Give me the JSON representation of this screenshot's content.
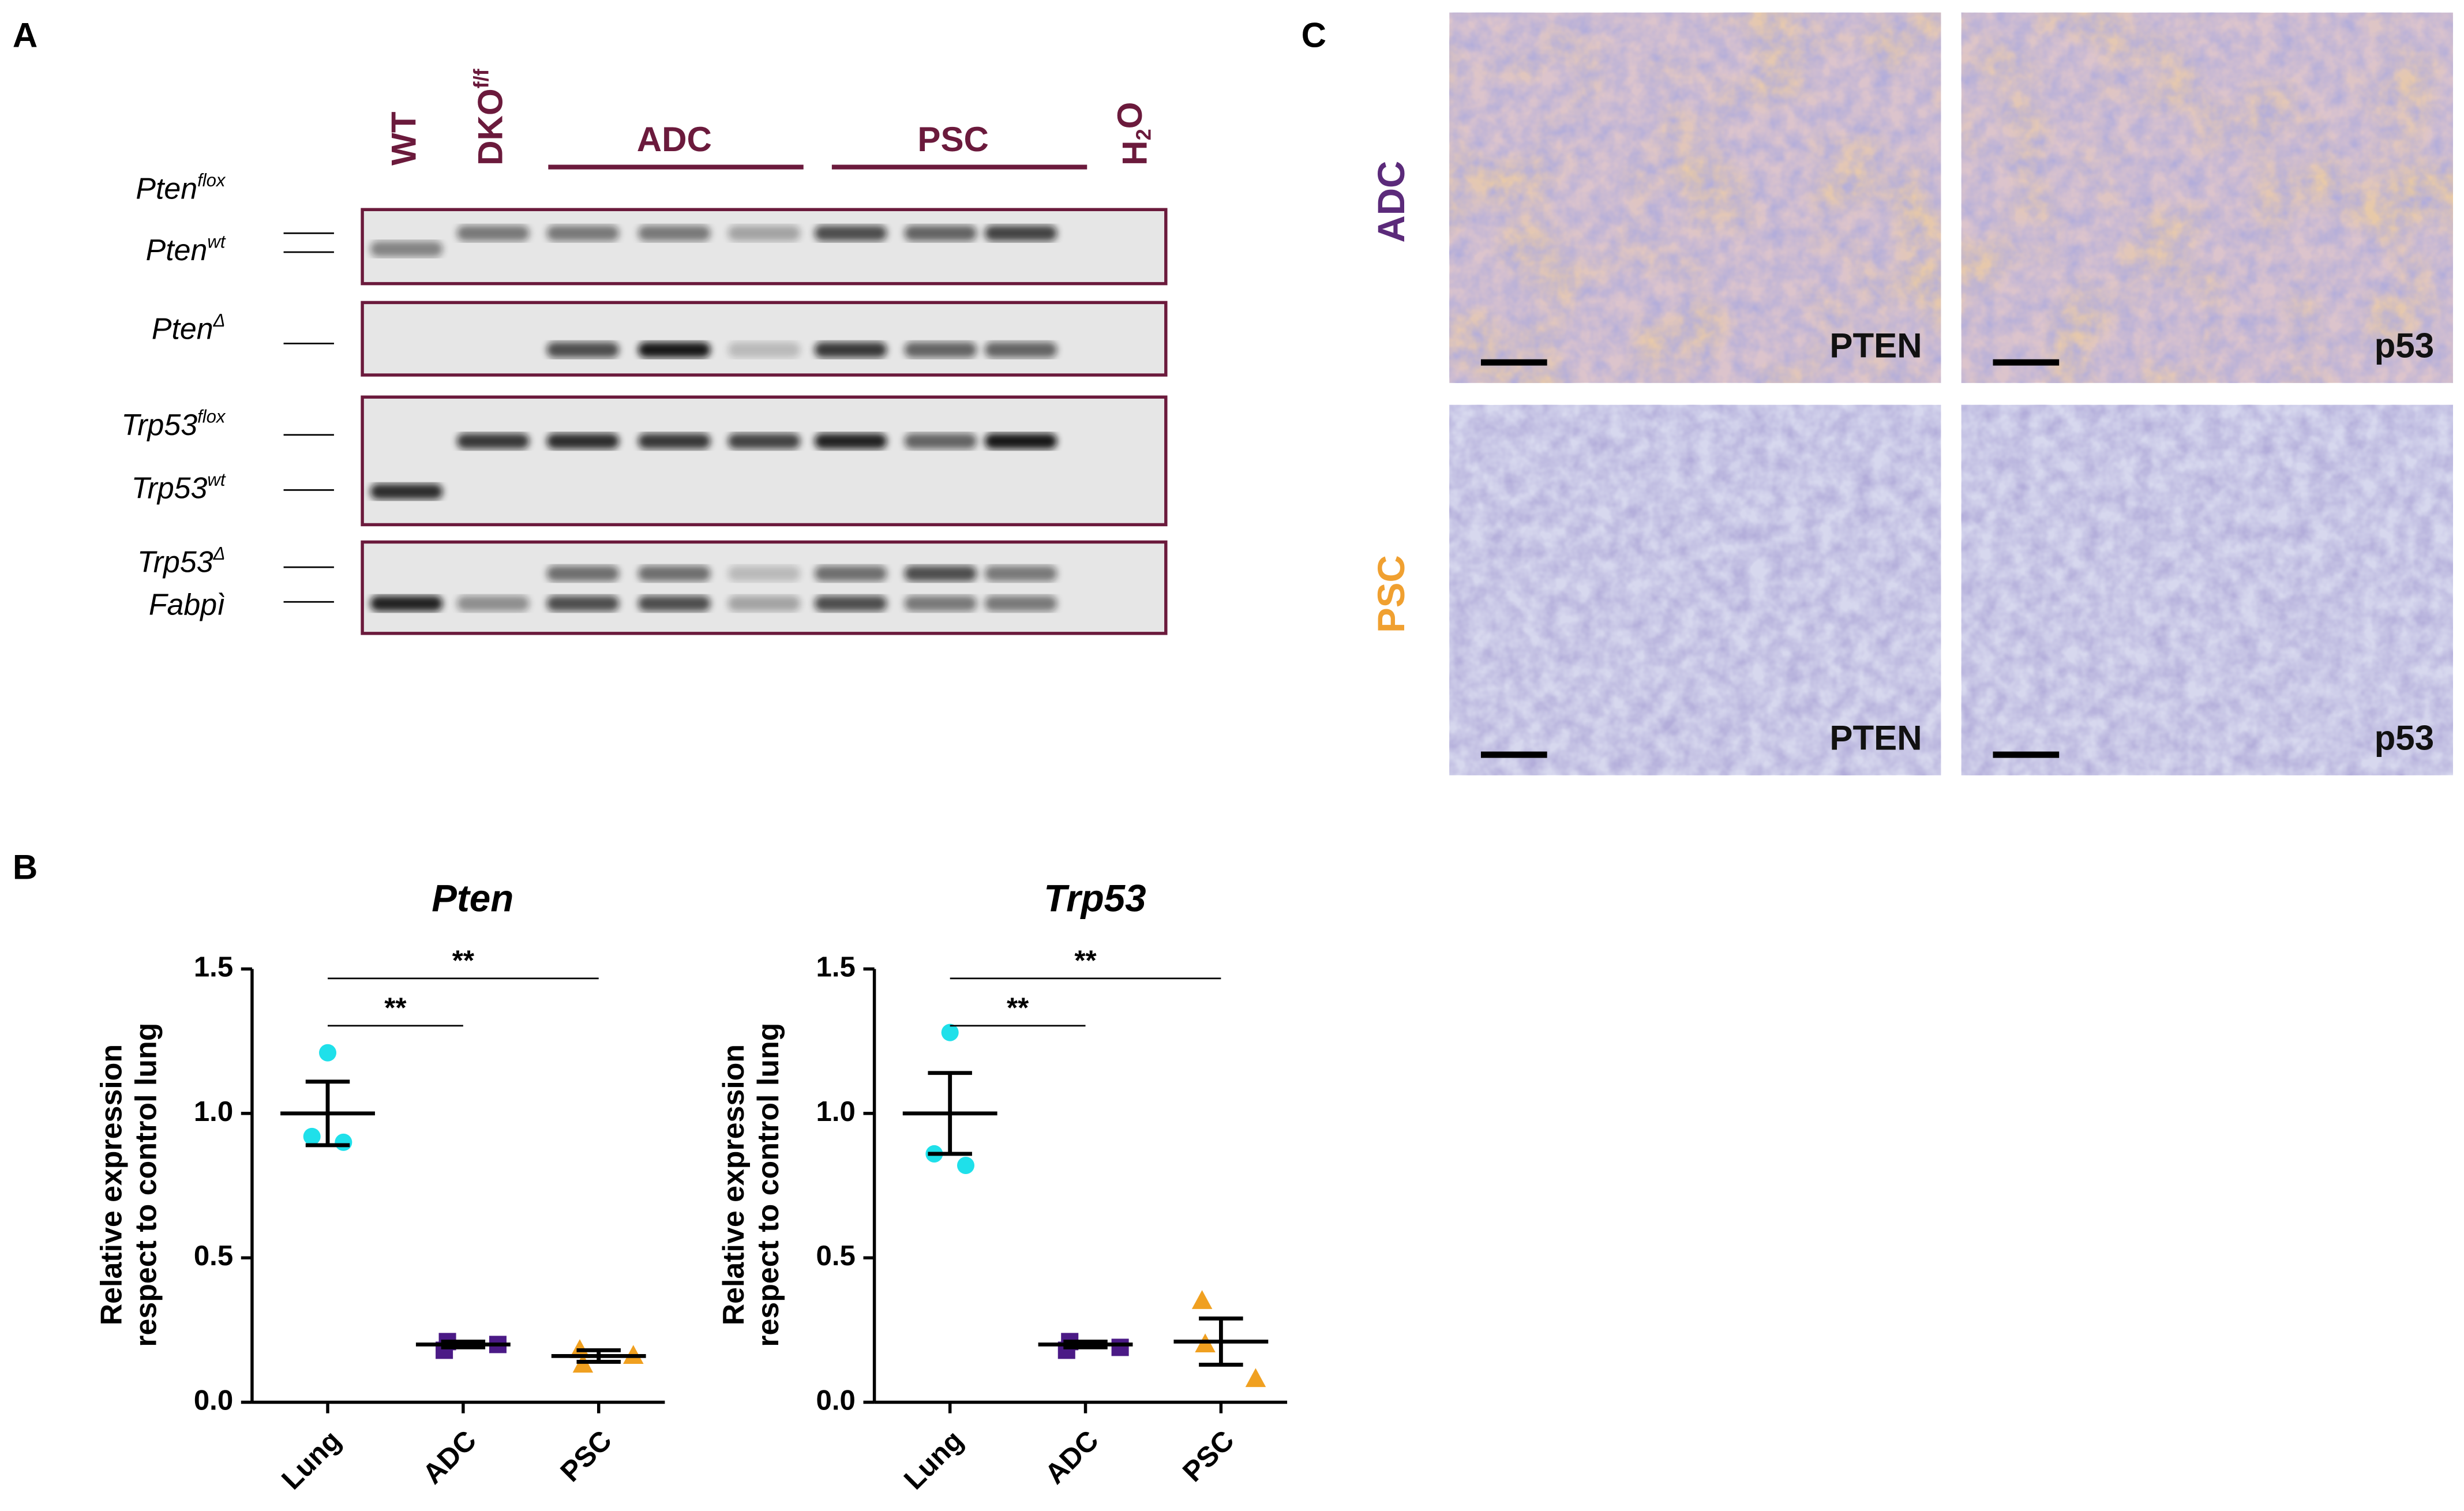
{
  "panels": {
    "a": "A",
    "b": "B",
    "c": "C"
  },
  "gel": {
    "lanes": [
      {
        "text": "WT"
      },
      {
        "text": "DKO",
        "sup": "f/f"
      },
      {
        "text": "ADC"
      },
      {
        "text": "PSC"
      },
      {
        "text": "H",
        "sub": "2",
        "tail": "O"
      }
    ],
    "bands": [
      {
        "text": "Pten",
        "sup": "flox"
      },
      {
        "text": "Pten",
        "sup": "wt"
      },
      {
        "text": "Pten",
        "sup": "Δ"
      },
      {
        "text": "Trp53",
        "sup": "flox"
      },
      {
        "text": "Trp53",
        "sup": "wt"
      },
      {
        "text": "Trp53",
        "sup": "Δ"
      },
      {
        "text": "Fabpì"
      }
    ]
  },
  "chart_data": [
    {
      "type": "dot",
      "title": "Pten",
      "ylabel": [
        "Relative expression",
        "respect to control lung"
      ],
      "categories": [
        "Lung",
        "ADC",
        "PSC"
      ],
      "groups": [
        {
          "color": "#1fe0ea",
          "marker": "circle",
          "values": [
            1.21,
            0.92,
            0.9
          ],
          "mean": 1.0,
          "sem": 0.11
        },
        {
          "color": "#4b1a86",
          "marker": "square",
          "values": [
            0.18,
            0.21,
            0.2
          ],
          "mean": 0.2,
          "sem": 0.01
        },
        {
          "color": "#f0a020",
          "marker": "triangle",
          "values": [
            0.18,
            0.13,
            0.16
          ],
          "mean": 0.16,
          "sem": 0.02
        }
      ],
      "comparisons": [
        {
          "from": 0,
          "to": 1,
          "label": "**"
        },
        {
          "from": 0,
          "to": 2,
          "label": "**"
        }
      ],
      "ylim": [
        0,
        1.5
      ],
      "yticks": [
        {
          "value": 0,
          "label": "0.0"
        },
        0.5,
        {
          "value": 1,
          "label": "1.0"
        },
        1.5
      ]
    },
    {
      "type": "dot",
      "title": "Trp53",
      "ylabel": [
        "Relative expression",
        "respect to control lung"
      ],
      "categories": [
        "Lung",
        "ADC",
        "PSC"
      ],
      "groups": [
        {
          "color": "#1fe0ea",
          "marker": "circle",
          "values": [
            1.28,
            0.86,
            0.82
          ],
          "mean": 1.0,
          "sem": 0.14
        },
        {
          "color": "#4b1a86",
          "marker": "square",
          "values": [
            0.18,
            0.21,
            0.19
          ],
          "mean": 0.2,
          "sem": 0.01
        },
        {
          "color": "#f0a020",
          "marker": "triangle",
          "values": [
            0.35,
            0.2,
            0.08
          ],
          "mean": 0.21,
          "sem": 0.08
        }
      ],
      "comparisons": [
        {
          "from": 0,
          "to": 1,
          "label": "**"
        },
        {
          "from": 0,
          "to": 2,
          "label": "**"
        }
      ],
      "ylim": [
        0,
        1.5
      ],
      "yticks": [
        {
          "value": 0,
          "label": "0.0"
        },
        0.5,
        {
          "value": 1,
          "label": "1.0"
        },
        1.5
      ]
    }
  ],
  "histology": {
    "rows": [
      "ADC",
      "PSC"
    ],
    "stains": [
      "PTEN",
      "p53"
    ]
  }
}
